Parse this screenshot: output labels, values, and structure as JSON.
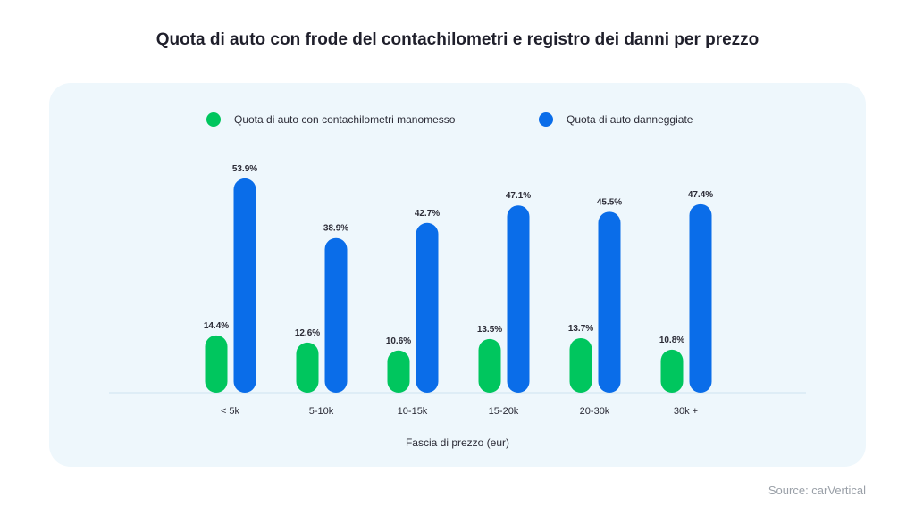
{
  "title": "Quota di auto con frode del contachilometri e registro dei danni per prezzo",
  "source": "Source: carVertical",
  "colors": {
    "panel": "#eef7fc",
    "green": "#00c65e",
    "blue": "#0a6de9",
    "axis": "#cfe3ef"
  },
  "chart_data": {
    "type": "bar",
    "title": "Quota di auto con frode del contachilometri e registro dei danni per prezzo",
    "xlabel": "Fascia di prezzo (eur)",
    "ylabel": "",
    "categories": [
      "< 5k",
      "5-10k",
      "10-15k",
      "15-20k",
      "20-30k",
      "30k +"
    ],
    "series": [
      {
        "name": "Quota di auto con contachilometri manomesso",
        "values": [
          14.4,
          12.6,
          10.6,
          13.5,
          13.7,
          10.8
        ],
        "labels": [
          "14.4%",
          "12.6%",
          "10.6%",
          "13.5%",
          "13.7%",
          "10.8%"
        ],
        "color": "#00c65e"
      },
      {
        "name": "Quota di auto danneggiate",
        "values": [
          53.9,
          38.9,
          42.7,
          47.1,
          45.5,
          47.4
        ],
        "labels": [
          "53.9%",
          "38.9%",
          "42.7%",
          "47.1%",
          "45.5%",
          "47.4%"
        ],
        "color": "#0a6de9"
      }
    ],
    "ylim": [
      0,
      55
    ],
    "grid": false,
    "legend": "top"
  }
}
